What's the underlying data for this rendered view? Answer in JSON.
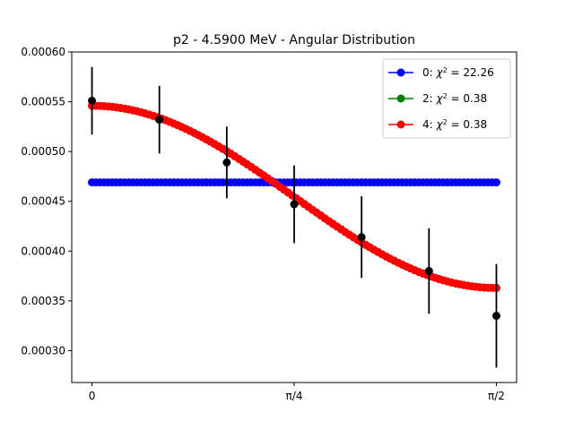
{
  "chart_data": {
    "type": "scatter",
    "title": "p2 - 4.5900 MeV - Angular Distribution",
    "xlabel": "",
    "ylabel": "",
    "xlim": [
      -0.0785,
      1.6493
    ],
    "ylim": [
      0.000268,
      0.0006
    ],
    "x_ticks": [
      {
        "value": 0,
        "label": "0"
      },
      {
        "value": 0.7854,
        "label": "π/4"
      },
      {
        "value": 1.5708,
        "label": "π/2"
      }
    ],
    "y_ticks": [
      {
        "value": 0.0003,
        "label": "0.00030"
      },
      {
        "value": 0.00035,
        "label": "0.00035"
      },
      {
        "value": 0.0004,
        "label": "0.00040"
      },
      {
        "value": 0.00045,
        "label": "0.00045"
      },
      {
        "value": 0.0005,
        "label": "0.00050"
      },
      {
        "value": 0.00055,
        "label": "0.00055"
      },
      {
        "value": 0.0006,
        "label": "0.00060"
      }
    ],
    "grid": false,
    "legend_position": "top-right",
    "data_points": {
      "color": "#000000",
      "x": [
        0,
        0.2618,
        0.5236,
        0.7854,
        1.0472,
        1.309,
        1.5708
      ],
      "y": [
        0.000551,
        0.000532,
        0.000489,
        0.000447,
        0.000414,
        0.00038,
        0.000335
      ],
      "err": [
        3.4e-05,
        3.4e-05,
        3.6e-05,
        3.9e-05,
        4.1e-05,
        4.3e-05,
        5.2e-05
      ]
    },
    "series": [
      {
        "name": "0: χ² = 22.26",
        "legend_label": "0: $\\chi^2 = 22.26$",
        "color": "#0000ff",
        "model": "constant",
        "a0": 0.000469,
        "a2": 0
      },
      {
        "name": "2: χ² = 0.38",
        "legend_label": "2: $\\chi^2 = 0.38$",
        "color": "#008000",
        "model": "legendre",
        "a0": 0.000424,
        "a2": 0.000122
      },
      {
        "name": "4: χ² = 0.38",
        "legend_label": "4: $\\chi^2 = 0.38$",
        "color": "#ff0000",
        "model": "legendre",
        "a0": 0.000424,
        "a2": 0.000122
      }
    ],
    "legend": [
      {
        "prefix": "0: ",
        "chi": "χ",
        "sup": "2",
        "rest": " = 22.26",
        "color": "#0000ff"
      },
      {
        "prefix": "2: ",
        "chi": "χ",
        "sup": "2",
        "rest": " = 0.38",
        "color": "#008000"
      },
      {
        "prefix": "4: ",
        "chi": "χ",
        "sup": "2",
        "rest": " = 0.38",
        "color": "#ff0000"
      }
    ]
  }
}
